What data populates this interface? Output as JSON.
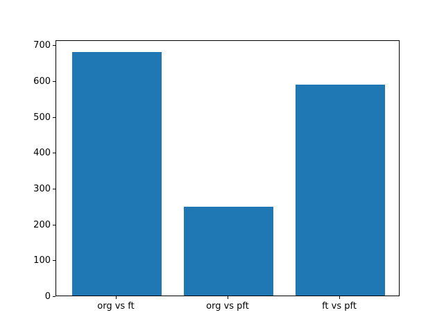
{
  "chart_data": {
    "type": "bar",
    "title": "",
    "xlabel": "",
    "ylabel": "",
    "categories": [
      "org vs ft",
      "org vs pft",
      "ft vs pft"
    ],
    "values": [
      680,
      247,
      588
    ],
    "bar_color": "#1f77b4",
    "ylim": [
      0,
      714
    ],
    "yticks": [
      0,
      100,
      200,
      300,
      400,
      500,
      600,
      700
    ],
    "grid": false,
    "legend_position": "none",
    "background_color": "#ffffff",
    "axis_color": "#000000"
  }
}
